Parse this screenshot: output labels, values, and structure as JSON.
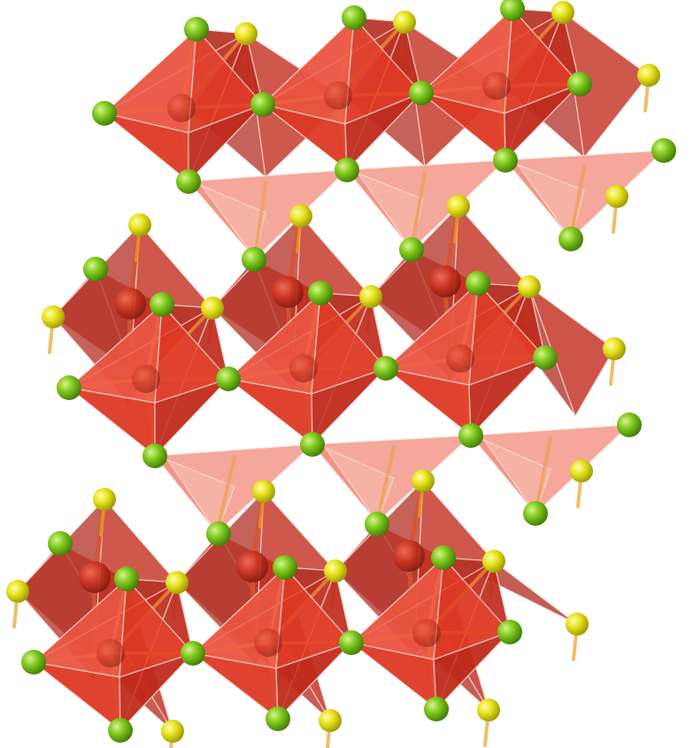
{
  "scene": {
    "kind": "crystal-structure-polyhedral-model",
    "layers": 3,
    "octahedra_per_layer": 3,
    "polyhedron": "octahedron",
    "colors": {
      "background": "#ffffff",
      "octa_light": "#f05a45",
      "octa_mid": "#e23a24",
      "octa_dark": "#c0291a",
      "octa_back": "#b5362a",
      "octa_pale": "#f4a79a",
      "center_atom": "#c9321f",
      "bond_orange": "#e8873a",
      "atom_green": "#7ec81e",
      "atom_green_dark": "#4e8d0c",
      "atom_yellow": "#e6e21a",
      "atom_yellow_dark": "#a8a408",
      "edge_white": "#fde2dc"
    },
    "atom_types": [
      {
        "name": "green-atom",
        "color": "#7ec81e"
      },
      {
        "name": "yellow-atom",
        "color": "#e6e21a"
      },
      {
        "name": "center-atom",
        "color": "#c9321f"
      }
    ]
  }
}
